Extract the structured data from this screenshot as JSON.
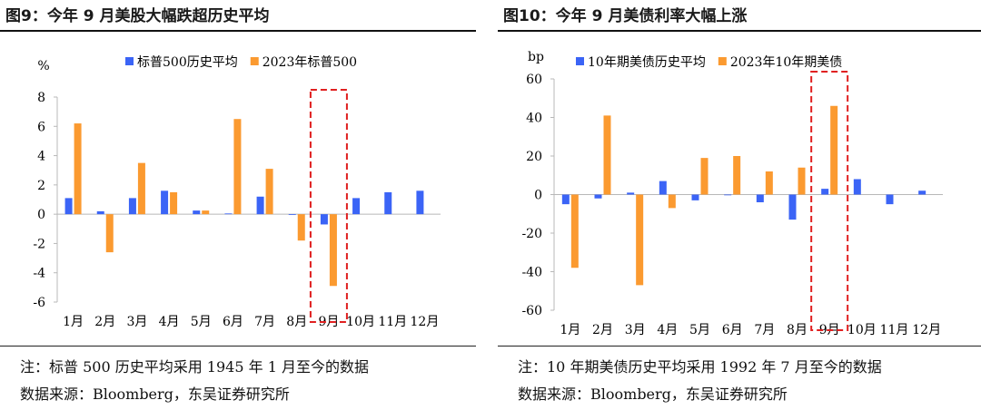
{
  "colors": {
    "blue": "#3b64f6",
    "orange": "#fb9a30",
    "axis": "#b8b8b8",
    "highlight": "#e02020"
  },
  "left": {
    "title": "图9：今年 9 月美股大幅跌超历史平均",
    "note": "注：标普 500 历史平均采用 1945 年 1 月至今的数据",
    "source": "数据来源：Bloomberg，东吴证券研究所"
  },
  "right": {
    "title": "图10：今年 9 月美债利率大幅上涨",
    "note": "注：10 年期美债历史平均采用 1992 年 7 月至今的数据",
    "source": "数据来源：Bloomberg，东吴证券研究所"
  },
  "chart_data": [
    {
      "type": "bar",
      "ylabel": "%",
      "ylim": [
        -6,
        8
      ],
      "yticks": [
        8,
        6,
        4,
        2,
        0,
        -2,
        -4,
        -6
      ],
      "categories": [
        "1月",
        "2月",
        "3月",
        "4月",
        "5月",
        "6月",
        "7月",
        "8月",
        "9月",
        "10月",
        "11月",
        "12月"
      ],
      "series": [
        {
          "name": "标普500历史平均",
          "color": "blue",
          "values": [
            1.1,
            0.2,
            1.1,
            1.6,
            0.25,
            0.05,
            1.2,
            -0.05,
            -0.7,
            1.1,
            1.5,
            1.6
          ]
        },
        {
          "name": "2023年标普500",
          "color": "orange",
          "values": [
            6.2,
            -2.6,
            3.5,
            1.5,
            0.25,
            6.5,
            3.1,
            -1.8,
            -4.9,
            null,
            null,
            null
          ]
        }
      ],
      "legend_position": "top",
      "highlight_category": "9月"
    },
    {
      "type": "bar",
      "ylabel": "bp",
      "ylim": [
        -60,
        60
      ],
      "yticks": [
        60,
        40,
        20,
        0,
        -20,
        -40,
        -60
      ],
      "categories": [
        "1月",
        "2月",
        "3月",
        "4月",
        "5月",
        "6月",
        "7月",
        "8月",
        "9月",
        "10月",
        "11月",
        "12月"
      ],
      "series": [
        {
          "name": "10年期美债历史平均",
          "color": "blue",
          "values": [
            -5,
            -2,
            1,
            7,
            -3,
            0,
            -4,
            -13,
            3,
            8,
            -5,
            2
          ]
        },
        {
          "name": "2023年10年期美债",
          "color": "orange",
          "values": [
            -38,
            41,
            -47,
            -7,
            19,
            20,
            12,
            14,
            46,
            null,
            null,
            null
          ]
        }
      ],
      "legend_position": "top",
      "highlight_category": "9月"
    }
  ]
}
